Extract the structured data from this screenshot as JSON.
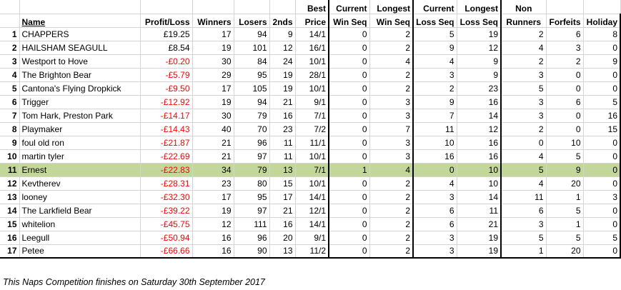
{
  "columns": {
    "name": "Name",
    "profit_loss": "Profit/Loss",
    "winners": "Winners",
    "losers": "Losers",
    "seconds": "2nds",
    "best_price": [
      "Best",
      "Price"
    ],
    "current_win_seq": [
      "Current",
      "Win Seq"
    ],
    "longest_win_seq": [
      "Longest",
      "Win Seq"
    ],
    "current_loss_seq": [
      "Current",
      "Loss Seq"
    ],
    "longest_loss_seq": [
      "Longest",
      "Loss Seq"
    ],
    "non_runners": [
      "Non",
      "Runners"
    ],
    "forfeits": "Forfeits",
    "holiday": "Holiday"
  },
  "rows": [
    {
      "pos": "1",
      "name": "CHAPPERS",
      "pl": "£19.25",
      "neg": false,
      "w": "17",
      "l": "94",
      "s": "9",
      "bp": "14/1",
      "cws": "0",
      "lws": "2",
      "cls": "5",
      "lls": "19",
      "nr": "2",
      "f": "6",
      "h": "8"
    },
    {
      "pos": "2",
      "name": "HAILSHAM SEAGULL",
      "pl": "£8.54",
      "neg": false,
      "w": "19",
      "l": "101",
      "s": "12",
      "bp": "16/1",
      "cws": "0",
      "lws": "2",
      "cls": "9",
      "lls": "12",
      "nr": "4",
      "f": "3",
      "h": "0"
    },
    {
      "pos": "3",
      "name": "Westport to Hove",
      "pl": "-£0.20",
      "neg": true,
      "w": "30",
      "l": "84",
      "s": "24",
      "bp": "10/1",
      "cws": "0",
      "lws": "4",
      "cls": "4",
      "lls": "9",
      "nr": "2",
      "f": "2",
      "h": "9"
    },
    {
      "pos": "4",
      "name": "The Brighton Bear",
      "pl": "-£5.79",
      "neg": true,
      "w": "29",
      "l": "95",
      "s": "19",
      "bp": "28/1",
      "cws": "0",
      "lws": "2",
      "cls": "3",
      "lls": "9",
      "nr": "3",
      "f": "0",
      "h": "0"
    },
    {
      "pos": "5",
      "name": "Cantona's Flying Dropkick",
      "pl": "-£9.50",
      "neg": true,
      "w": "17",
      "l": "105",
      "s": "19",
      "bp": "10/1",
      "cws": "0",
      "lws": "2",
      "cls": "2",
      "lls": "23",
      "nr": "5",
      "f": "0",
      "h": "0"
    },
    {
      "pos": "6",
      "name": "Trigger",
      "pl": "-£12.92",
      "neg": true,
      "w": "19",
      "l": "94",
      "s": "21",
      "bp": "9/1",
      "cws": "0",
      "lws": "3",
      "cls": "9",
      "lls": "16",
      "nr": "3",
      "f": "6",
      "h": "5"
    },
    {
      "pos": "7",
      "name": "Tom Hark, Preston Park",
      "pl": "-£14.17",
      "neg": true,
      "w": "30",
      "l": "79",
      "s": "16",
      "bp": "7/1",
      "cws": "0",
      "lws": "3",
      "cls": "7",
      "lls": "14",
      "nr": "3",
      "f": "0",
      "h": "16"
    },
    {
      "pos": "8",
      "name": "Playmaker",
      "pl": "-£14.43",
      "neg": true,
      "w": "40",
      "l": "70",
      "s": "23",
      "bp": "7/2",
      "cws": "0",
      "lws": "7",
      "cls": "11",
      "lls": "12",
      "nr": "2",
      "f": "0",
      "h": "15"
    },
    {
      "pos": "9",
      "name": "foul old ron",
      "pl": "-£21.87",
      "neg": true,
      "w": "21",
      "l": "96",
      "s": "11",
      "bp": "11/1",
      "cws": "0",
      "lws": "3",
      "cls": "10",
      "lls": "16",
      "nr": "0",
      "f": "10",
      "h": "0"
    },
    {
      "pos": "10",
      "name": "martin tyler",
      "pl": "-£22.69",
      "neg": true,
      "w": "21",
      "l": "97",
      "s": "11",
      "bp": "10/1",
      "cws": "0",
      "lws": "3",
      "cls": "16",
      "lls": "16",
      "nr": "4",
      "f": "5",
      "h": "0"
    },
    {
      "pos": "11",
      "name": "Ernest",
      "pl": "-£22.83",
      "neg": true,
      "w": "34",
      "l": "79",
      "s": "13",
      "bp": "7/1",
      "cws": "1",
      "lws": "4",
      "cls": "0",
      "lls": "10",
      "nr": "5",
      "f": "9",
      "h": "0",
      "highlight": true
    },
    {
      "pos": "12",
      "name": "Kevtherev",
      "pl": "-£28.31",
      "neg": true,
      "w": "23",
      "l": "80",
      "s": "15",
      "bp": "10/1",
      "cws": "0",
      "lws": "2",
      "cls": "4",
      "lls": "10",
      "nr": "4",
      "f": "20",
      "h": "0"
    },
    {
      "pos": "13",
      "name": "looney",
      "pl": "-£32.30",
      "neg": true,
      "w": "17",
      "l": "95",
      "s": "17",
      "bp": "14/1",
      "cws": "0",
      "lws": "2",
      "cls": "3",
      "lls": "14",
      "nr": "11",
      "f": "1",
      "h": "3"
    },
    {
      "pos": "14",
      "name": "The Larkfield Bear",
      "pl": "-£39.22",
      "neg": true,
      "w": "19",
      "l": "97",
      "s": "21",
      "bp": "12/1",
      "cws": "0",
      "lws": "2",
      "cls": "6",
      "lls": "11",
      "nr": "6",
      "f": "5",
      "h": "0"
    },
    {
      "pos": "15",
      "name": "whitelion",
      "pl": "-£45.75",
      "neg": true,
      "w": "12",
      "l": "111",
      "s": "16",
      "bp": "14/1",
      "cws": "0",
      "lws": "2",
      "cls": "6",
      "lls": "21",
      "nr": "3",
      "f": "1",
      "h": "0"
    },
    {
      "pos": "16",
      "name": "Leegull",
      "pl": "-£50.94",
      "neg": true,
      "w": "16",
      "l": "96",
      "s": "20",
      "bp": "9/1",
      "cws": "0",
      "lws": "2",
      "cls": "3",
      "lls": "19",
      "nr": "5",
      "f": "5",
      "h": "5"
    },
    {
      "pos": "17",
      "name": "Petee",
      "pl": "-£66.66",
      "neg": true,
      "w": "16",
      "l": "90",
      "s": "13",
      "bp": "11/2",
      "cws": "0",
      "lws": "2",
      "cls": "3",
      "lls": "19",
      "nr": "1",
      "f": "20",
      "h": "0"
    }
  ],
  "footer": "This Naps Competition finishes on Saturday 30th September 2017",
  "colors": {
    "highlight_row": "#c4d79b",
    "negative_text": "#ff0000",
    "gridline": "#d4d4d4"
  }
}
